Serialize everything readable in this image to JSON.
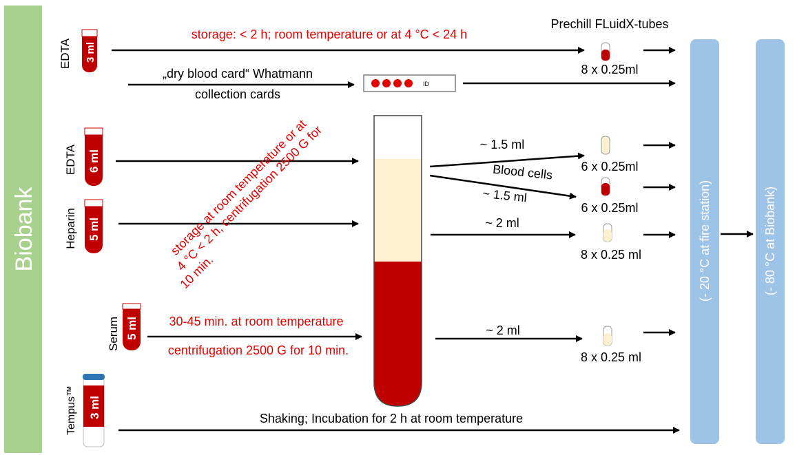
{
  "sidebar": {
    "label": "Biobank",
    "color": "#a9d18e"
  },
  "colors": {
    "red": "#c00000",
    "plasma": "#fdf0d0",
    "freezer": "#9dc3e6",
    "text_red": "#e60000",
    "arrow": "#000000",
    "cap_blue": "#2e75b6"
  },
  "header": {
    "prechill": "Prechill FLuidX-tubes"
  },
  "tubes": {
    "edta_top": {
      "label": "EDTA",
      "volume": "3 ml"
    },
    "edta_mid": {
      "label": "EDTA",
      "volume": "6 ml"
    },
    "heparin": {
      "label": "Heparin",
      "volume": "5 ml"
    },
    "serum": {
      "label": "Serum",
      "volume": "5 ml"
    },
    "tempus": {
      "label": "Tempus™",
      "volume": "3 ml"
    }
  },
  "notes": {
    "storage_top": "storage: < 2 h; room temperature or at 4 °C < 24 h",
    "dry_card_line1": "„dry blood card“ Whatmann",
    "dry_card_line2": "collection cards",
    "card_id": "ID",
    "diagonal_line1": "storage at room temperature or at",
    "diagonal_line2": "4 °C < 2 h, centrifugation 2500 G for",
    "diagonal_line3": "10 min.",
    "serum_line1": "30-45 min. at room temperature",
    "serum_line2": "centrifugation 2500 G for 10 min.",
    "tempus_note": "Shaking; Incubation for 2 h at room temperature"
  },
  "aliquots": {
    "top": "8 x 0.25ml",
    "plasma_vol": "~ 1.5 ml",
    "plasma_count": "6 x 0.25ml",
    "cells_label": "Blood cells",
    "cells_vol": "~ 1.5 ml",
    "cells_count": "6 x 0.25ml",
    "heparin_vol": "~ 2 ml",
    "heparin_count": "8 x 0.25 ml",
    "serum_vol": "~ 2 ml",
    "serum_count": "8 x 0.25 ml"
  },
  "freezers": {
    "fire_station": "(- 20 °C at fire station)",
    "biobank": "(- 80 °C  at Biobank)"
  }
}
